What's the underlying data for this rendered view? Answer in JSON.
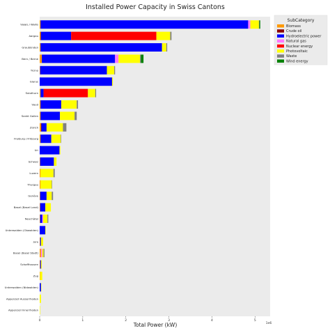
{
  "chart_data": {
    "type": "bar",
    "orientation": "horizontal",
    "stacked": true,
    "title": "Installed Power Capacity in Swiss Cantons",
    "xlabel": "Total Power (kW)",
    "ylabel": "",
    "x_scale_note": "1e6",
    "xlim": [
      0,
      5.35
    ],
    "xticks": [
      0,
      1,
      2,
      3,
      4,
      5
    ],
    "grid": false,
    "background": "#ebebeb",
    "legend": {
      "title": "SubCategory",
      "placement": "right"
    },
    "categories": [
      "Valais / Wallis",
      "Aargau",
      "Graubünden",
      "Bern / Berne",
      "Ticino",
      "Glarus",
      "Solothurn",
      "Vaud",
      "Sankt Gallen",
      "Zürich",
      "Freiburg / Fribourg",
      "Uri",
      "Schwyz",
      "Luzern",
      "Thurgau",
      "Genève",
      "Basel (Basel Land)",
      "Neuchâtel",
      "Unterwalden (Obwalden)",
      "Jura",
      "Basel (Basel Stadt)",
      "Schaffhausen",
      "Zug",
      "Unterwalden (Nidwalden)",
      "Appenzell Ausserrhoden",
      "Appenzell Innerrhoden"
    ],
    "series": [
      {
        "name": "Biomass",
        "color": "#ff9900",
        "values": [
          0.02,
          0.02,
          0.02,
          0.05,
          0.01,
          0.0,
          0.02,
          0.02,
          0.02,
          0.03,
          0.02,
          0.0,
          0.01,
          0.02,
          0.02,
          0.01,
          0.01,
          0.01,
          0.0,
          0.01,
          0.03,
          0.01,
          0.01,
          0.0,
          0.0,
          0.0
        ]
      },
      {
        "name": "Crude oil",
        "color": "#8b0000",
        "values": [
          0.0,
          0.01,
          0.0,
          0.0,
          0.0,
          0.0,
          0.0,
          0.0,
          0.0,
          0.01,
          0.0,
          0.0,
          0.0,
          0.0,
          0.0,
          0.0,
          0.0,
          0.0,
          0.0,
          0.0,
          0.0,
          0.0,
          0.0,
          0.0,
          0.0,
          0.0
        ]
      },
      {
        "name": "Hydroelectric power",
        "color": "#0000ff",
        "values": [
          4.82,
          0.7,
          2.82,
          1.7,
          1.55,
          1.68,
          0.07,
          0.48,
          0.45,
          0.12,
          0.25,
          0.46,
          0.32,
          0.0,
          0.0,
          0.15,
          0.12,
          0.05,
          0.13,
          0.02,
          0.0,
          0.02,
          0.0,
          0.03,
          0.0,
          0.0
        ]
      },
      {
        "name": "Natural gas",
        "color": "#ff77ff",
        "values": [
          0.05,
          0.0,
          0.0,
          0.08,
          0.0,
          0.0,
          0.0,
          0.0,
          0.0,
          0.0,
          0.0,
          0.0,
          0.0,
          0.0,
          0.0,
          0.0,
          0.0,
          0.02,
          0.0,
          0.0,
          0.03,
          0.0,
          0.0,
          0.0,
          0.0,
          0.0
        ]
      },
      {
        "name": "Nuclear energy",
        "color": "#ff0000",
        "values": [
          0.0,
          1.98,
          0.0,
          0.0,
          0.0,
          0.0,
          1.03,
          0.0,
          0.0,
          0.0,
          0.0,
          0.0,
          0.0,
          0.0,
          0.0,
          0.0,
          0.0,
          0.0,
          0.0,
          0.0,
          0.0,
          0.0,
          0.0,
          0.0,
          0.0,
          0.0
        ]
      },
      {
        "name": "Photovoltaic",
        "color": "#ffff00",
        "values": [
          0.2,
          0.32,
          0.1,
          0.5,
          0.17,
          0.02,
          0.17,
          0.36,
          0.34,
          0.38,
          0.22,
          0.02,
          0.06,
          0.3,
          0.26,
          0.12,
          0.13,
          0.1,
          0.01,
          0.05,
          0.03,
          0.02,
          0.05,
          0.01,
          0.03,
          0.01
        ]
      },
      {
        "name": "Waste",
        "color": "#808080",
        "values": [
          0.01,
          0.03,
          0.02,
          0.02,
          0.02,
          0.0,
          0.02,
          0.03,
          0.05,
          0.08,
          0.01,
          0.0,
          0.0,
          0.03,
          0.01,
          0.03,
          0.0,
          0.02,
          0.0,
          0.0,
          0.02,
          0.0,
          0.0,
          0.0,
          0.0,
          0.0
        ]
      },
      {
        "name": "Wind energy",
        "color": "#008000",
        "values": [
          0.02,
          0.0,
          0.0,
          0.06,
          0.0,
          0.0,
          0.0,
          0.0,
          0.0,
          0.0,
          0.0,
          0.0,
          0.0,
          0.0,
          0.0,
          0.0,
          0.0,
          0.0,
          0.0,
          0.0,
          0.0,
          0.0,
          0.0,
          0.0,
          0.0,
          0.0
        ]
      }
    ]
  }
}
